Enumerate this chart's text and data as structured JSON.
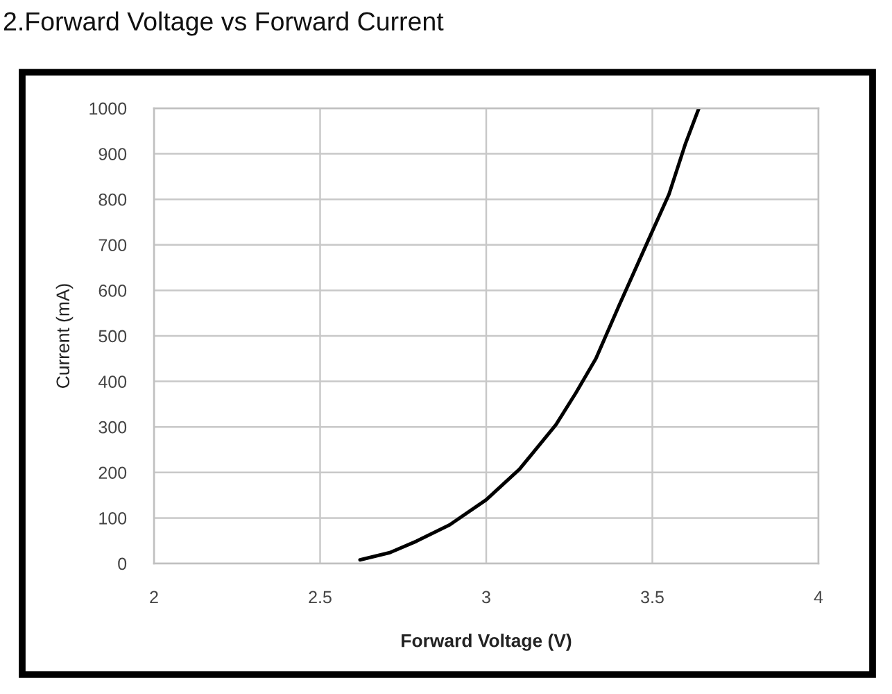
{
  "chart_data": {
    "type": "line",
    "title": "2.Forward Voltage vs Forward Current",
    "xlabel": "Forward Voltage (V)",
    "ylabel": "Current (mA)",
    "x": [
      2.62,
      2.71,
      2.79,
      2.89,
      3.0,
      3.1,
      3.21,
      3.27,
      3.33,
      3.4,
      3.5,
      3.55,
      3.6,
      3.64
    ],
    "series": [
      {
        "color": "#000000",
        "values": [
          8,
          24,
          49,
          85,
          140,
          207,
          305,
          375,
          450,
          567,
          730,
          811,
          923,
          1000
        ]
      }
    ],
    "xlim": [
      2,
      4
    ],
    "ylim": [
      0,
      1000
    ],
    "xticks": [
      2,
      2.5,
      3,
      3.5,
      4
    ],
    "yticks": [
      0,
      100,
      200,
      300,
      400,
      500,
      600,
      700,
      800,
      900,
      1000
    ],
    "grid": true,
    "line_style": "solid"
  }
}
